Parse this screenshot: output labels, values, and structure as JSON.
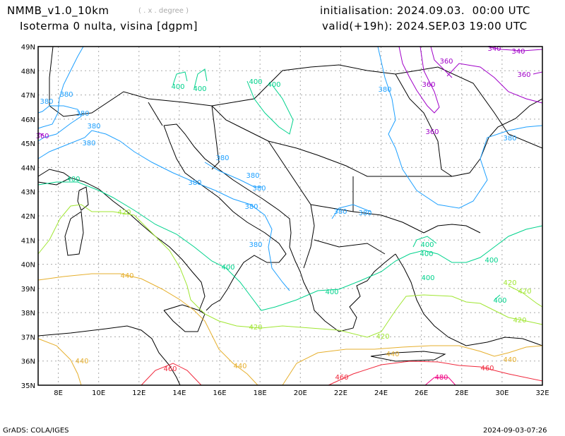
{
  "header": {
    "model": "NMMB_v1.0_10km",
    "units_note": "( . x . degree )",
    "field": "Isoterma 0 nulta, visina [dgpm]",
    "init": "initialisation: 2024.09.03.  00:00 UTC",
    "valid": "valid(+19h): 2024.SEP.03 19:00 UTC"
  },
  "footer": {
    "software": "GrADS: COLA/IGES",
    "timestamp": "2024-09-03-07:26"
  },
  "map": {
    "lon_range": [
      7,
      32
    ],
    "lat_range": [
      35,
      49
    ],
    "lon_ticks": [
      "8E",
      "10E",
      "12E",
      "14E",
      "16E",
      "18E",
      "20E",
      "22E",
      "24E",
      "26E",
      "28E",
      "30E",
      "32E"
    ],
    "lat_ticks": [
      "35N",
      "36N",
      "37N",
      "38N",
      "39N",
      "40N",
      "41N",
      "42N",
      "43N",
      "44N",
      "45N",
      "46N",
      "47N",
      "48N",
      "49N"
    ],
    "contour_colors": {
      "340": "#a000c8",
      "360": "#a000c8",
      "380": "#1ea0ff",
      "400": "#00d28c",
      "420": "#a0e632",
      "440": "#e6af2d",
      "460": "#f0283c",
      "480": "#f00082"
    },
    "contour_labels": [
      "380",
      "380",
      "380",
      "380",
      "380",
      "360",
      "400",
      "400",
      "400",
      "400",
      "380",
      "380",
      "380",
      "380",
      "380",
      "380",
      "380",
      "400",
      "380",
      "400",
      "400",
      "400",
      "400",
      "400",
      "400",
      "420",
      "420",
      "420",
      "420",
      "420",
      "440",
      "440",
      "440",
      "440",
      "440",
      "460",
      "460",
      "460",
      "480",
      "360",
      "360",
      "360",
      "360",
      "340",
      "340",
      "380",
      "380",
      "400",
      "420"
    ]
  }
}
